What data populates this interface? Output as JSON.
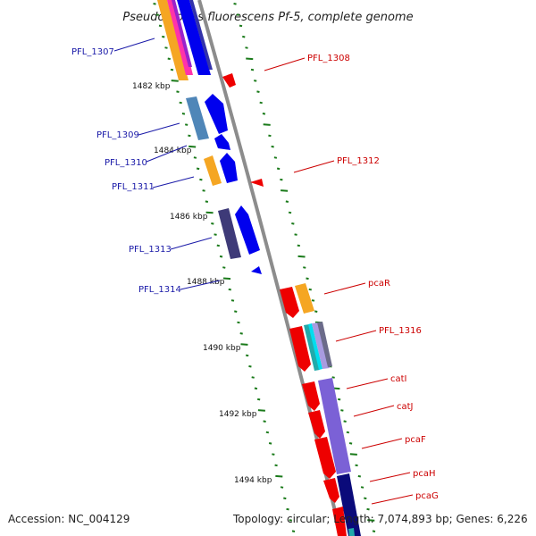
{
  "title": "Pseudomonas fluorescens Pf-5, complete genome",
  "accession_text": "Accession: NC_004129",
  "summary_text": "Topology: circular; Length: 7,074,893 bp; Genes: 6,226",
  "colors": {
    "backbone": "#8c8c8c",
    "ticks": "#1a7a1a",
    "forward_label": "#1a1aa8",
    "reverse_label": "#cc0000",
    "forward_arrow": "#0000ee",
    "reverse_arrow": "#ee0000"
  },
  "scale_labels": [
    "1482 kbp",
    "1484 kbp",
    "1486 kbp",
    "1488 kbp",
    "1490 kbp",
    "1492 kbp",
    "1494 kbp"
  ],
  "forward_genes": [
    "PFL_1307",
    "PFL_1309",
    "PFL_1310",
    "PFL_1311",
    "PFL_1313",
    "PFL_1314"
  ],
  "reverse_genes": [
    "PFL_1308",
    "PFL_1312",
    "pcaR",
    "PFL_1316",
    "catI",
    "catJ",
    "pcaF",
    "pcaH",
    "pcaG"
  ]
}
